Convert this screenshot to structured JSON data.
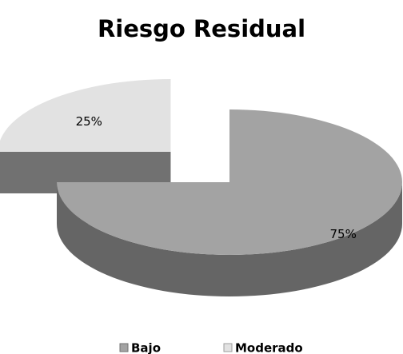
{
  "chart_data": {
    "type": "pie",
    "title": "Riesgo Residual",
    "categories": [
      "Bajo",
      "Moderado"
    ],
    "values": [
      75,
      25
    ],
    "value_labels": [
      "75%",
      "25%"
    ],
    "colors": [
      "#a3a3a3",
      "#e2e2e2"
    ],
    "legend": "bottom"
  }
}
